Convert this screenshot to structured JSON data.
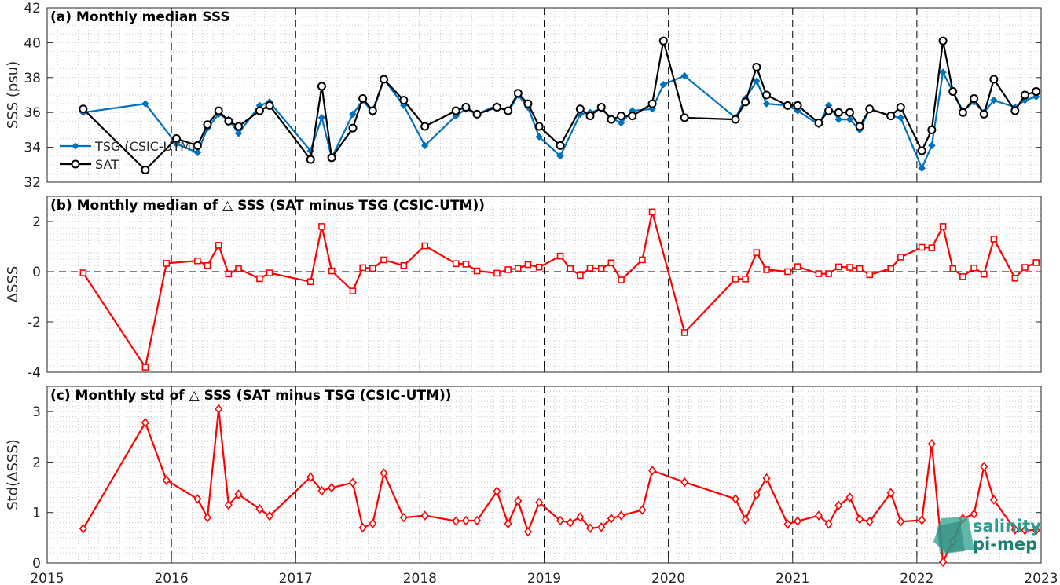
{
  "colors": {
    "tsg": "#0072BD",
    "sat": "#000000",
    "delta": "#FF0000",
    "grid": "#c8c8c8",
    "axis": "#262626"
  },
  "logo": {
    "line1": "salinity",
    "line2": "pi-mep"
  },
  "chart_data": [
    {
      "id": "a",
      "type": "line",
      "title": "(a) Monthly median SSS",
      "ylabel": "SSS (psu)",
      "xlim": [
        2015,
        2023
      ],
      "ylim": [
        32,
        42
      ],
      "yticks": [
        32,
        34,
        36,
        38,
        40,
        42
      ],
      "legend": {
        "placement": "middle-left",
        "entries": [
          "TSG (CSIC-UTM)",
          "SAT"
        ]
      },
      "series": [
        {
          "name": "TSG (CSIC-UTM)",
          "marker": "dot",
          "x": [
            2015.29,
            2015.79,
            2016.04,
            2016.21,
            2016.29,
            2016.38,
            2016.46,
            2016.54,
            2016.71,
            2016.79,
            2017.12,
            2017.21,
            2017.29,
            2017.46,
            2017.54,
            2017.62,
            2017.71,
            2017.87,
            2018.04,
            2018.29,
            2018.37,
            2018.46,
            2018.62,
            2018.71,
            2018.79,
            2018.87,
            2018.96,
            2019.13,
            2019.29,
            2019.37,
            2019.46,
            2019.54,
            2019.62,
            2019.71,
            2019.87,
            2019.96,
            2020.13,
            2020.54,
            2020.62,
            2020.71,
            2020.79,
            2020.96,
            2021.04,
            2021.21,
            2021.29,
            2021.37,
            2021.46,
            2021.54,
            2021.62,
            2021.79,
            2021.87,
            2022.04,
            2022.12,
            2022.21,
            2022.29,
            2022.37,
            2022.46,
            2022.54,
            2022.62,
            2022.79,
            2022.87,
            2022.96
          ],
          "values": [
            36.0,
            36.5,
            34.2,
            33.7,
            35.1,
            35.9,
            35.6,
            34.8,
            36.4,
            36.6,
            33.8,
            35.7,
            33.4,
            35.9,
            36.7,
            36.0,
            37.9,
            36.4,
            34.1,
            35.8,
            36.2,
            35.9,
            36.4,
            36.0,
            37.0,
            36.3,
            34.6,
            33.5,
            35.9,
            36.0,
            36.2,
            35.7,
            35.4,
            36.1,
            36.2,
            37.6,
            38.1,
            35.7,
            36.8,
            37.8,
            36.5,
            36.4,
            36.1,
            35.3,
            36.4,
            35.6,
            35.6,
            35.0,
            36.2,
            35.8,
            35.7,
            32.8,
            34.1,
            38.3,
            37.2,
            36.1,
            36.6,
            36.0,
            36.7,
            36.3,
            36.7,
            36.9
          ]
        },
        {
          "name": "SAT",
          "marker": "circle",
          "x": [
            2015.29,
            2015.79,
            2016.04,
            2016.21,
            2016.29,
            2016.38,
            2016.46,
            2016.54,
            2016.71,
            2016.79,
            2017.12,
            2017.21,
            2017.29,
            2017.46,
            2017.54,
            2017.62,
            2017.71,
            2017.87,
            2018.04,
            2018.29,
            2018.37,
            2018.46,
            2018.62,
            2018.71,
            2018.79,
            2018.87,
            2018.96,
            2019.13,
            2019.29,
            2019.37,
            2019.46,
            2019.54,
            2019.62,
            2019.71,
            2019.87,
            2019.96,
            2020.13,
            2020.54,
            2020.62,
            2020.71,
            2020.79,
            2020.96,
            2021.04,
            2021.21,
            2021.29,
            2021.37,
            2021.46,
            2021.54,
            2021.62,
            2021.79,
            2021.87,
            2022.04,
            2022.12,
            2022.21,
            2022.29,
            2022.37,
            2022.46,
            2022.54,
            2022.62,
            2022.79,
            2022.87,
            2022.96
          ],
          "values": [
            36.2,
            32.7,
            34.5,
            34.1,
            35.3,
            36.1,
            35.5,
            35.2,
            36.1,
            36.4,
            33.3,
            37.5,
            33.4,
            35.1,
            36.8,
            36.1,
            37.9,
            36.7,
            35.2,
            36.1,
            36.3,
            35.9,
            36.3,
            36.1,
            37.1,
            36.5,
            35.2,
            34.1,
            36.2,
            35.8,
            36.3,
            35.6,
            35.8,
            35.8,
            36.5,
            40.1,
            35.7,
            35.6,
            36.6,
            38.6,
            37.0,
            36.4,
            36.4,
            35.4,
            36.1,
            36.0,
            36.0,
            35.2,
            36.2,
            35.8,
            36.3,
            33.8,
            35.0,
            40.1,
            37.2,
            36.0,
            36.8,
            35.9,
            37.9,
            36.1,
            37.0,
            37.2
          ]
        }
      ]
    },
    {
      "id": "b",
      "type": "line",
      "title": "(b) Monthly median of △ SSS (SAT minus TSG (CSIC-UTM))",
      "ylabel": "ΔSSS",
      "xlim": [
        2015,
        2023
      ],
      "ylim": [
        -4,
        3
      ],
      "yticks": [
        -4,
        -2,
        0,
        2
      ],
      "zero_line": true,
      "series": [
        {
          "name": "",
          "marker": "square",
          "x": [
            2015.29,
            2015.79,
            2015.96,
            2016.21,
            2016.29,
            2016.38,
            2016.46,
            2016.54,
            2016.71,
            2016.79,
            2017.12,
            2017.21,
            2017.29,
            2017.46,
            2017.54,
            2017.62,
            2017.71,
            2017.87,
            2018.04,
            2018.29,
            2018.37,
            2018.46,
            2018.62,
            2018.71,
            2018.79,
            2018.87,
            2018.96,
            2019.13,
            2019.21,
            2019.29,
            2019.37,
            2019.46,
            2019.54,
            2019.62,
            2019.79,
            2019.87,
            2020.13,
            2020.54,
            2020.62,
            2020.71,
            2020.79,
            2020.96,
            2021.04,
            2021.21,
            2021.29,
            2021.37,
            2021.46,
            2021.54,
            2021.62,
            2021.79,
            2021.87,
            2022.04,
            2022.12,
            2022.21,
            2022.29,
            2022.37,
            2022.46,
            2022.54,
            2022.62,
            2022.79,
            2022.87,
            2022.96
          ],
          "values": [
            -0.05,
            -3.8,
            0.33,
            0.43,
            0.24,
            1.05,
            -0.09,
            0.12,
            -0.28,
            -0.05,
            -0.4,
            1.8,
            0.03,
            -0.77,
            0.16,
            0.13,
            0.47,
            0.24,
            1.03,
            0.32,
            0.3,
            0.03,
            -0.06,
            0.08,
            0.13,
            0.28,
            0.18,
            0.62,
            0.12,
            -0.15,
            0.14,
            0.12,
            0.35,
            -0.33,
            0.47,
            2.38,
            -2.42,
            -0.29,
            -0.29,
            0.76,
            0.08,
            0.0,
            0.2,
            -0.08,
            -0.08,
            0.19,
            0.17,
            0.12,
            -0.12,
            0.12,
            0.58,
            0.97,
            0.95,
            1.8,
            0.12,
            -0.2,
            0.15,
            -0.1,
            1.3,
            -0.26,
            0.17,
            0.36
          ]
        }
      ]
    },
    {
      "id": "c",
      "type": "line",
      "title": "(c) Monthly std of △ SSS (SAT minus TSG (CSIC-UTM))",
      "ylabel": "Std(ΔSSS)",
      "xlim": [
        2015,
        2023
      ],
      "ylim": [
        0,
        3.5
      ],
      "yticks": [
        0,
        1,
        2,
        3
      ],
      "xticks": [
        "2015",
        "2016",
        "2017",
        "2018",
        "2019",
        "2020",
        "2021",
        "2022",
        "2023"
      ],
      "series": [
        {
          "name": "",
          "marker": "diamond",
          "x": [
            2015.29,
            2015.79,
            2015.96,
            2016.21,
            2016.29,
            2016.38,
            2016.46,
            2016.54,
            2016.71,
            2016.79,
            2017.12,
            2017.21,
            2017.29,
            2017.46,
            2017.54,
            2017.62,
            2017.71,
            2017.87,
            2018.04,
            2018.29,
            2018.37,
            2018.46,
            2018.62,
            2018.71,
            2018.79,
            2018.87,
            2018.96,
            2019.13,
            2019.21,
            2019.29,
            2019.37,
            2019.46,
            2019.54,
            2019.62,
            2019.79,
            2019.87,
            2020.13,
            2020.54,
            2020.62,
            2020.71,
            2020.79,
            2020.96,
            2021.04,
            2021.21,
            2021.29,
            2021.37,
            2021.46,
            2021.54,
            2021.62,
            2021.79,
            2021.87,
            2022.04,
            2022.12,
            2022.21,
            2022.29,
            2022.37,
            2022.46,
            2022.54,
            2022.62,
            2022.79,
            2022.87,
            2022.96
          ],
          "values": [
            0.68,
            2.78,
            1.64,
            1.27,
            0.9,
            3.05,
            1.15,
            1.36,
            1.07,
            0.93,
            1.7,
            1.43,
            1.49,
            1.59,
            0.7,
            0.78,
            1.78,
            0.9,
            0.94,
            0.83,
            0.84,
            0.84,
            1.42,
            0.78,
            1.23,
            0.62,
            1.2,
            0.84,
            0.8,
            0.91,
            0.69,
            0.71,
            0.88,
            0.94,
            1.05,
            1.83,
            1.6,
            1.27,
            0.86,
            1.35,
            1.68,
            0.77,
            0.83,
            0.94,
            0.77,
            1.14,
            1.3,
            0.87,
            0.82,
            1.39,
            0.82,
            0.85,
            2.36,
            0.02,
            0.43,
            0.88,
            0.97,
            1.91,
            1.25,
            0.66,
            0.65,
            0.65
          ]
        }
      ]
    }
  ]
}
